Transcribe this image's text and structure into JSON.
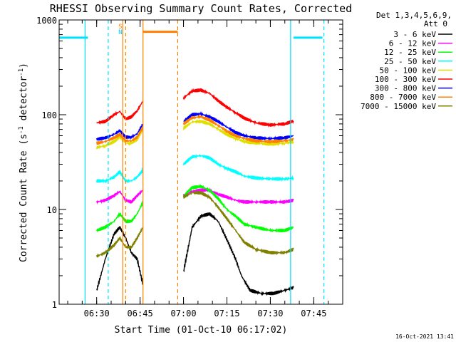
{
  "chart_data": {
    "type": "line",
    "title": "RHESSI Observing Summary Count Rates, Corrected",
    "xlabel": "Start Time (01-Oct-10 06:17:02)",
    "ylabel": "Corrected Count Rate (s⁻¹ detector⁻¹)",
    "ylabel_main": "Corrected Count Rate (s",
    "ylabel_mid": " detector",
    "ylabel_end": ")",
    "ylabel_sup": "-1",
    "yscale": "log",
    "ylim": [
      1,
      1000
    ],
    "xlim": [
      "06:17:02",
      "07:55:00"
    ],
    "x_tick_labels": [
      "06:30",
      "06:45",
      "07:00",
      "07:15",
      "07:30",
      "07:45"
    ],
    "x_tick_values": [
      "06:30",
      "06:45",
      "07:00",
      "07:15",
      "07:30",
      "07:45"
    ],
    "y_tick_labels": [
      "1",
      "10",
      "100",
      "1000"
    ],
    "y_tick_values": [
      1,
      10,
      100,
      1000
    ],
    "legend_title": [
      "Det 1,3,4,5,6,9,",
      "Att 0"
    ],
    "legend_position": "top-right outside",
    "timestamp": "16-Oct-2021 13:41",
    "flags": [
      {
        "label": "S",
        "color": "#ff8000",
        "time": "06:38:30"
      },
      {
        "label": "N",
        "color": "#00d0ff",
        "time": "06:38:30"
      }
    ],
    "attenuator_bars": [
      {
        "color": "#00e0ff",
        "start": "06:17:02",
        "end": "06:27:00",
        "y": 650
      },
      {
        "color": "#00e0ff",
        "start": "07:38:00",
        "end": "07:48:00",
        "y": 650
      },
      {
        "color": "#ff8000",
        "start": "06:46:00",
        "end": "06:58:00",
        "y": 750
      }
    ],
    "vertical_lines": [
      {
        "color": "#00e0ff",
        "style": "solid",
        "time": "06:26:00"
      },
      {
        "color": "#00e0ff",
        "style": "dashed",
        "time": "06:34:00"
      },
      {
        "color": "#ff8000",
        "style": "solid",
        "time": "06:39:00"
      },
      {
        "color": "#ff8000",
        "style": "dashed",
        "time": "06:40:00"
      },
      {
        "color": "#ff8000",
        "style": "solid",
        "time": "06:46:00"
      },
      {
        "color": "#ff8000",
        "style": "dashed",
        "time": "06:58:00"
      },
      {
        "color": "#00e0ff",
        "style": "solid",
        "time": "07:37:00"
      },
      {
        "color": "#00e0ff",
        "style": "dashed",
        "time": "07:48:30"
      }
    ],
    "series": [
      {
        "name": "3 - 6 keV",
        "color": "#000000",
        "segments": [
          {
            "t": [
              "06:30",
              "06:33",
              "06:36",
              "06:38",
              "06:40",
              "06:42",
              "06:44",
              "06:46"
            ],
            "v": [
              1.4,
              3.0,
              5.5,
              6.5,
              5.0,
              3.5,
              3.0,
              1.6
            ]
          },
          {
            "t": [
              "07:00",
              "07:03",
              "07:06",
              "07:09",
              "07:12",
              "07:15",
              "07:18",
              "07:20",
              "07:23",
              "07:27",
              "07:31",
              "07:35",
              "07:38"
            ],
            "v": [
              2.2,
              6.5,
              8.5,
              9.0,
              7.5,
              4.8,
              3.0,
              2.0,
              1.4,
              1.3,
              1.3,
              1.4,
              1.5
            ]
          }
        ]
      },
      {
        "name": "6 - 12 keV",
        "color": "#ff00ff",
        "segments": [
          {
            "t": [
              "06:30",
              "06:33",
              "06:36",
              "06:38",
              "06:40",
              "06:42",
              "06:44",
              "06:46"
            ],
            "v": [
              12.0,
              12.5,
              14.0,
              15.5,
              12.5,
              12.0,
              14.0,
              16.0
            ]
          },
          {
            "t": [
              "07:00",
              "07:03",
              "07:06",
              "07:09",
              "07:12",
              "07:15",
              "07:18",
              "07:21",
              "07:25",
              "07:30",
              "07:35",
              "07:38"
            ],
            "v": [
              14.0,
              15.5,
              16.0,
              16.0,
              14.5,
              13.5,
              12.5,
              12.0,
              12.0,
              12.0,
              12.0,
              12.5
            ]
          }
        ]
      },
      {
        "name": "12 - 25 keV",
        "color": "#00ff00",
        "segments": [
          {
            "t": [
              "06:30",
              "06:33",
              "06:36",
              "06:38",
              "06:40",
              "06:42",
              "06:44",
              "06:46"
            ],
            "v": [
              6.0,
              6.5,
              7.5,
              9.0,
              7.5,
              7.5,
              9.0,
              12.0
            ]
          },
          {
            "t": [
              "07:00",
              "07:03",
              "07:06",
              "07:09",
              "07:12",
              "07:15",
              "07:18",
              "07:21",
              "07:25",
              "07:30",
              "07:35",
              "07:38"
            ],
            "v": [
              14.0,
              17.0,
              17.5,
              16.0,
              13.0,
              10.0,
              8.5,
              7.0,
              6.5,
              6.0,
              6.0,
              6.5
            ]
          }
        ]
      },
      {
        "name": "25 - 50 keV",
        "color": "#00ffff",
        "segments": [
          {
            "t": [
              "06:30",
              "06:33",
              "06:36",
              "06:38",
              "06:40",
              "06:42",
              "06:44",
              "06:46"
            ],
            "v": [
              20.0,
              20.0,
              22.0,
              25.0,
              20.0,
              20.0,
              22.0,
              26.0
            ]
          },
          {
            "t": [
              "07:00",
              "07:03",
              "07:06",
              "07:09",
              "07:12",
              "07:15",
              "07:18",
              "07:21",
              "07:25",
              "07:30",
              "07:35",
              "07:38"
            ],
            "v": [
              30.0,
              36.0,
              37.0,
              35.0,
              30.0,
              27.0,
              25.0,
              22.5,
              21.5,
              21.0,
              21.0,
              21.5
            ]
          }
        ]
      },
      {
        "name": "50 - 100 keV",
        "color": "#e0e000",
        "segments": [
          {
            "t": [
              "06:30",
              "06:33",
              "06:36",
              "06:38",
              "06:40",
              "06:42",
              "06:44",
              "06:46"
            ],
            "v": [
              45.0,
              47.0,
              52.0,
              58.0,
              50.0,
              50.0,
              55.0,
              70.0
            ]
          },
          {
            "t": [
              "07:00",
              "07:03",
              "07:06",
              "07:09",
              "07:12",
              "07:15",
              "07:18",
              "07:21",
              "07:25",
              "07:30",
              "07:35",
              "07:38"
            ],
            "v": [
              72.0,
              84.0,
              85.0,
              80.0,
              70.0,
              62.0,
              56.0,
              52.0,
              50.0,
              49.0,
              50.0,
              52.0
            ]
          }
        ]
      },
      {
        "name": "100 - 300 keV",
        "color": "#ff0000",
        "segments": [
          {
            "t": [
              "06:30",
              "06:33",
              "06:36",
              "06:38",
              "06:40",
              "06:42",
              "06:44",
              "06:46"
            ],
            "v": [
              82.0,
              85.0,
              100.0,
              108.0,
              90.0,
              95.0,
              110.0,
              140.0
            ]
          },
          {
            "t": [
              "07:00",
              "07:03",
              "07:06",
              "07:09",
              "07:12",
              "07:15",
              "07:18",
              "07:21",
              "07:25",
              "07:30",
              "07:35",
              "07:38"
            ],
            "v": [
              150.0,
              178.0,
              182.0,
              168.0,
              140.0,
              120.0,
              105.0,
              92.0,
              82.0,
              78.0,
              80.0,
              86.0
            ]
          }
        ]
      },
      {
        "name": "300 - 800 keV",
        "color": "#0000ff",
        "segments": [
          {
            "t": [
              "06:30",
              "06:33",
              "06:36",
              "06:38",
              "06:40",
              "06:42",
              "06:44",
              "06:46"
            ],
            "v": [
              55.0,
              57.0,
              62.0,
              68.0,
              58.0,
              58.0,
              63.0,
              80.0
            ]
          },
          {
            "t": [
              "07:00",
              "07:03",
              "07:06",
              "07:09",
              "07:12",
              "07:15",
              "07:18",
              "07:21",
              "07:25",
              "07:30",
              "07:35",
              "07:38"
            ],
            "v": [
              85.0,
              100.0,
              102.0,
              95.0,
              85.0,
              74.0,
              65.0,
              60.0,
              57.0,
              56.0,
              57.0,
              60.0
            ]
          }
        ]
      },
      {
        "name": "800 - 7000 keV",
        "color": "#ff8000",
        "segments": [
          {
            "t": [
              "06:30",
              "06:33",
              "06:36",
              "06:38",
              "06:40",
              "06:42",
              "06:44",
              "06:46"
            ],
            "v": [
              50.0,
              52.0,
              57.0,
              62.0,
              53.0,
              53.0,
              58.0,
              74.0
            ]
          },
          {
            "t": [
              "07:00",
              "07:03",
              "07:06",
              "07:09",
              "07:12",
              "07:15",
              "07:18",
              "07:21",
              "07:25",
              "07:30",
              "07:35",
              "07:38"
            ],
            "v": [
              80.0,
              93.0,
              95.0,
              88.0,
              77.0,
              67.0,
              60.0,
              56.0,
              53.0,
              52.0,
              53.0,
              55.0
            ]
          }
        ]
      },
      {
        "name": "7000 - 15000 keV",
        "color": "#808000",
        "segments": [
          {
            "t": [
              "06:30",
              "06:33",
              "06:36",
              "06:38",
              "06:40",
              "06:42",
              "06:44",
              "06:46"
            ],
            "v": [
              3.2,
              3.5,
              4.2,
              5.0,
              4.0,
              4.0,
              5.0,
              6.5
            ]
          },
          {
            "t": [
              "07:00",
              "07:03",
              "07:06",
              "07:09",
              "07:12",
              "07:15",
              "07:18",
              "07:21",
              "07:25",
              "07:30",
              "07:35",
              "07:38"
            ],
            "v": [
              13.5,
              15.0,
              15.0,
              13.5,
              10.5,
              8.0,
              6.0,
              4.5,
              3.8,
              3.5,
              3.5,
              3.8
            ]
          }
        ]
      }
    ]
  }
}
